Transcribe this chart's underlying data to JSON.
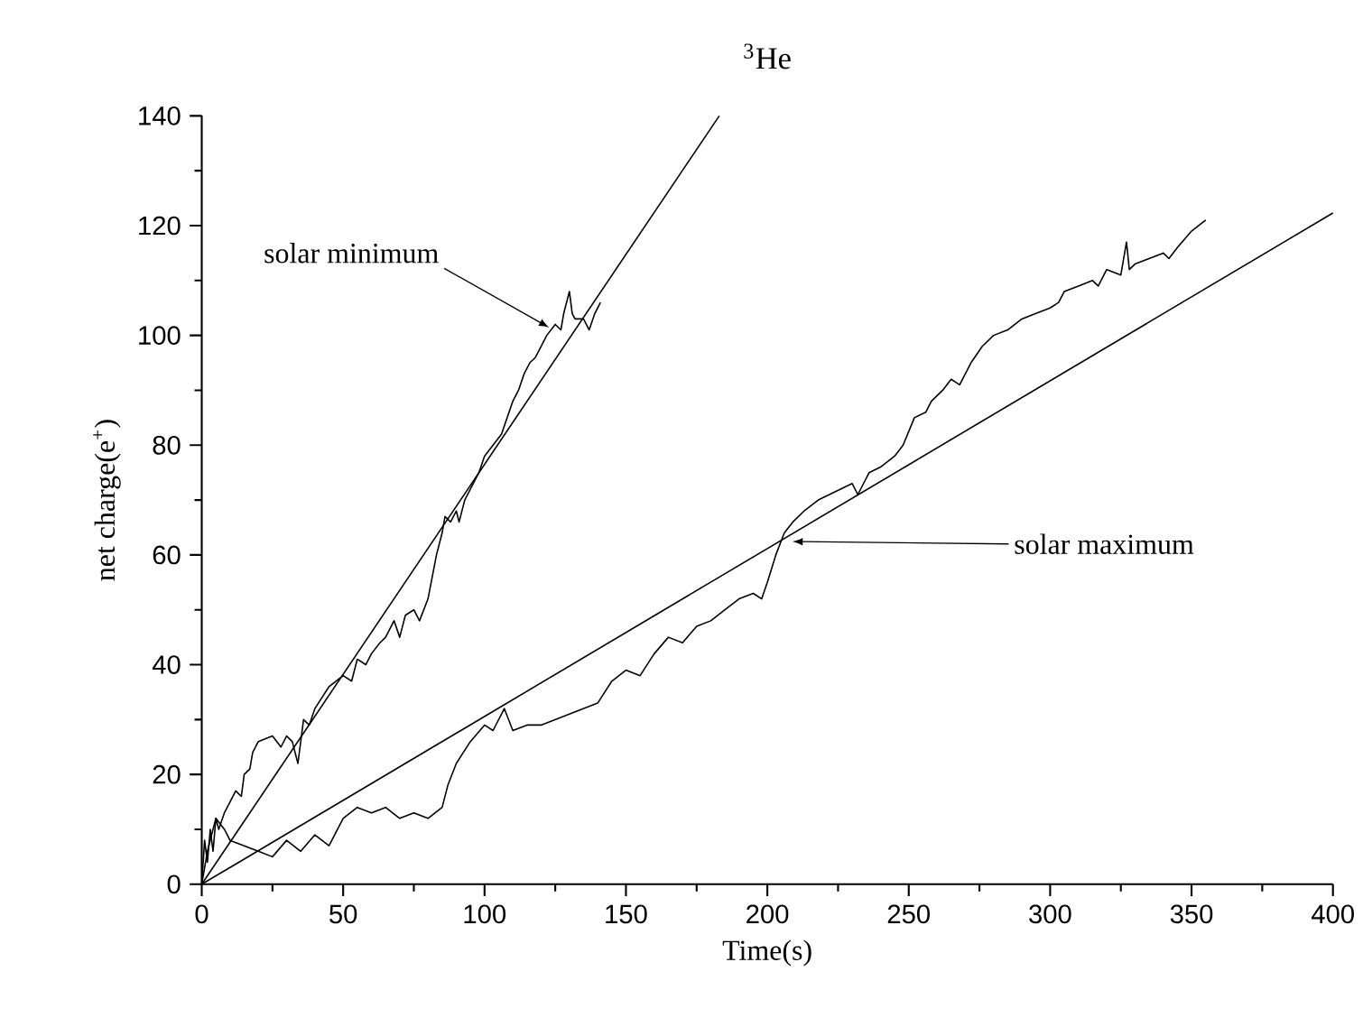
{
  "chart_data": {
    "type": "line",
    "title": "$^{3}$He",
    "xlabel": "Time(s)",
    "ylabel": "net charge(e$^{+}$)",
    "xlim": [
      0,
      400
    ],
    "ylim": [
      0,
      140
    ],
    "xticks": [
      0,
      50,
      100,
      150,
      200,
      250,
      300,
      350,
      400
    ],
    "yticks": [
      0,
      20,
      40,
      60,
      80,
      100,
      120,
      140
    ],
    "marker": "none",
    "line_style": "solid",
    "series": [
      {
        "color": "#000000",
        "x": [
          0,
          1,
          2,
          3,
          4,
          5,
          6,
          8,
          10,
          12,
          14,
          15,
          17,
          18,
          20,
          25,
          28,
          30,
          32,
          34,
          36,
          38,
          40,
          45,
          50,
          53,
          55,
          58,
          60,
          63,
          65,
          68,
          70,
          72,
          75,
          77,
          80,
          83,
          85,
          86,
          88,
          90,
          91,
          93,
          95,
          98,
          100,
          103,
          106,
          108,
          110,
          112,
          114,
          116,
          118,
          120,
          122,
          125,
          127,
          128,
          130,
          131,
          132,
          135,
          137,
          139,
          141
        ],
        "values": [
          0,
          8,
          4,
          10,
          6,
          12,
          10,
          13,
          15,
          17,
          16,
          20,
          21,
          24,
          26,
          27,
          25,
          27,
          26,
          22,
          30,
          29,
          32,
          36,
          38,
          37,
          41,
          40,
          42,
          44,
          45,
          48,
          45,
          49,
          50,
          48,
          52,
          60,
          64,
          67,
          66,
          68,
          66,
          70,
          72,
          75,
          78,
          80,
          82,
          85,
          88,
          90,
          93,
          95,
          96,
          98,
          100,
          102,
          101,
          104,
          108,
          104,
          103,
          103,
          101,
          104,
          106
        ]
      },
      {
        "color": "#000000",
        "x": [
          0,
          2,
          5,
          8,
          10,
          15,
          20,
          25,
          30,
          35,
          40,
          45,
          50,
          55,
          60,
          65,
          70,
          75,
          80,
          85,
          87,
          90,
          95,
          100,
          103,
          107,
          110,
          115,
          120,
          130,
          140,
          145,
          150,
          155,
          160,
          165,
          170,
          175,
          180,
          185,
          190,
          195,
          198,
          200,
          203,
          206,
          209,
          213,
          218,
          222,
          226,
          230,
          232,
          236,
          240,
          245,
          248,
          252,
          256,
          258,
          262,
          265,
          268,
          272,
          276,
          280,
          285,
          290,
          295,
          300,
          303,
          305,
          310,
          315,
          317,
          320,
          325,
          327,
          328,
          330,
          335,
          340,
          342,
          345,
          350,
          355
        ],
        "values": [
          0,
          6,
          12,
          10,
          8,
          7,
          6,
          5,
          8,
          6,
          9,
          7,
          12,
          14,
          13,
          14,
          12,
          13,
          12,
          14,
          18,
          22,
          26,
          29,
          28,
          32,
          28,
          29,
          29,
          31,
          33,
          37,
          39,
          38,
          42,
          45,
          44,
          47,
          48,
          50,
          52,
          53,
          52,
          55,
          60,
          64,
          66,
          68,
          70,
          71,
          72,
          73,
          71,
          75,
          76,
          78,
          80,
          85,
          86,
          88,
          90,
          92,
          91,
          95,
          98,
          100,
          101,
          103,
          104,
          105,
          106,
          108,
          109,
          110,
          109,
          112,
          111,
          117,
          112,
          113,
          114,
          115,
          114,
          116,
          119,
          121
        ]
      },
      {
        "type": "line",
        "color": "#000000",
        "x": [
          0,
          183
        ],
        "values": [
          0,
          140
        ]
      },
      {
        "type": "line",
        "color": "#000000",
        "x": [
          0,
          400
        ],
        "values": [
          0,
          122.3
        ]
      }
    ],
    "annotations": [
      {
        "text": "solar minimum",
        "x": 122,
        "y": 101
      },
      {
        "text": "solar maximum",
        "x": 208,
        "y": 62
      }
    ]
  }
}
